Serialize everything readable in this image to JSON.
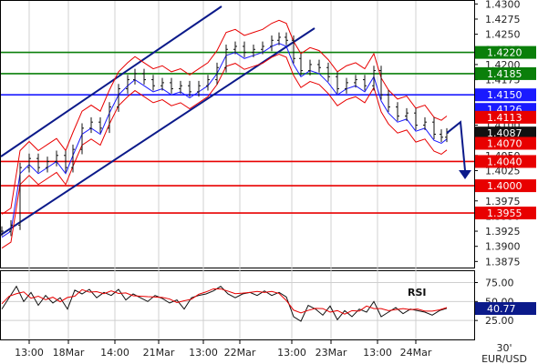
{
  "chart_data": {
    "type": "candlestick",
    "pair": "EUR/USD",
    "timeframe": "30'",
    "colors": {
      "green": "#0a7f0a",
      "blue": "#1a1aff",
      "red": "#e80000",
      "navy": "#0b1a8a",
      "black": "#111111",
      "gray": "#888888"
    },
    "price_axis": {
      "ylim": [
        1.3865,
        1.4305
      ],
      "ticks": [
        "1.4300",
        "1.4275",
        "1.4250",
        "1.4225",
        "1.4200",
        "1.4175",
        "1.4150",
        "1.4125",
        "1.4100",
        "1.4075",
        "1.4050",
        "1.4025",
        "1.4000",
        "1.3975",
        "1.3950",
        "1.3925",
        "1.3900",
        "1.3875"
      ]
    },
    "levels": [
      {
        "value": 1.422,
        "label": "1.4220",
        "color": "green"
      },
      {
        "value": 1.4185,
        "label": "1.4185",
        "color": "green"
      },
      {
        "value": 1.415,
        "label": "1.4150",
        "color": "blue"
      },
      {
        "value": 1.404,
        "label": "1.4040",
        "color": "red"
      },
      {
        "value": 1.4,
        "label": "1.4000",
        "color": "red"
      },
      {
        "value": 1.3955,
        "label": "1.3955",
        "color": "red"
      }
    ],
    "price_tags": [
      {
        "value": 1.4126,
        "label": "1.4126",
        "color": "blue"
      },
      {
        "value": 1.4113,
        "label": "1.4113",
        "color": "red"
      },
      {
        "value": 1.4087,
        "label": "1.4087",
        "color": "black"
      },
      {
        "value": 1.407,
        "label": "1.4070",
        "color": "red"
      }
    ],
    "x_labels": [
      "13:00",
      "18Mar",
      "14:00",
      "21Mar",
      "13:00",
      "22Mar",
      "13:00",
      "23Mar",
      "13:00",
      "24Mar"
    ],
    "rsi": {
      "label": "RSI",
      "ylim": [
        0,
        90
      ],
      "ticks": [
        "75.00",
        "50.00",
        "25.00"
      ],
      "value_label": "40.77"
    }
  }
}
